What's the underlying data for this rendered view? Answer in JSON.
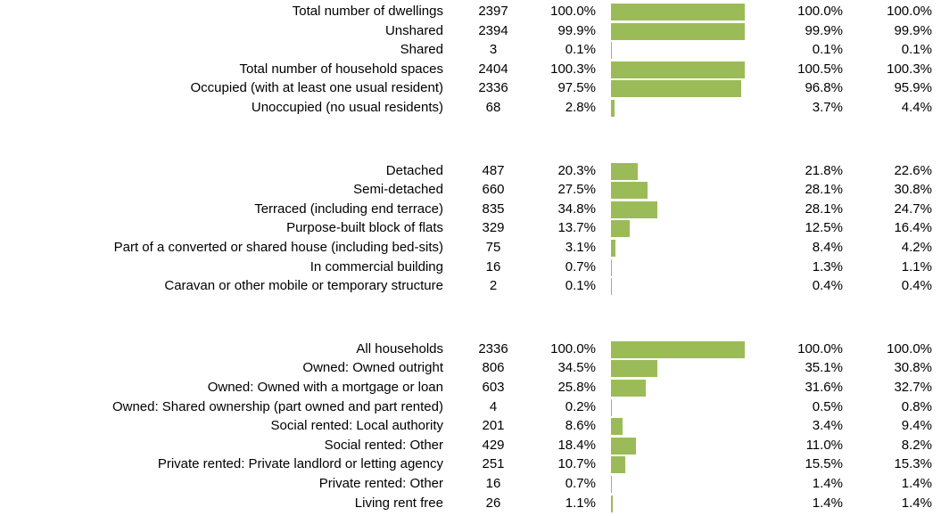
{
  "groups": [
    {
      "rows": [
        {
          "label": "Total number of dwellings",
          "count": 2397,
          "pct": {
            "value": 100.0,
            "label": "100.0%"
          },
          "c4": "100.0%",
          "c5": "100.0%"
        },
        {
          "label": "Unshared",
          "count": 2394,
          "pct": {
            "value": 99.9,
            "label": "99.9%"
          },
          "c4": "99.9%",
          "c5": "99.9%"
        },
        {
          "label": "Shared",
          "count": 3,
          "pct": {
            "value": 0.1,
            "label": "0.1%"
          },
          "c4": "0.1%",
          "c5": "0.1%"
        },
        {
          "label": "Total number of household spaces",
          "count": 2404,
          "pct": {
            "value": 100.3,
            "label": "100.3%"
          },
          "c4": "100.5%",
          "c5": "100.3%"
        },
        {
          "label": "Occupied (with at least one usual resident)",
          "count": 2336,
          "pct": {
            "value": 97.5,
            "label": "97.5%"
          },
          "c4": "96.8%",
          "c5": "95.9%"
        },
        {
          "label": "Unoccupied (no usual residents)",
          "count": 68,
          "pct": {
            "value": 2.8,
            "label": "2.8%"
          },
          "c4": "3.7%",
          "c5": "4.4%"
        }
      ]
    },
    {
      "rows": [
        {
          "label": "Detached",
          "count": 487,
          "pct": {
            "value": 20.3,
            "label": "20.3%"
          },
          "c4": "21.8%",
          "c5": "22.6%"
        },
        {
          "label": "Semi-detached",
          "count": 660,
          "pct": {
            "value": 27.5,
            "label": "27.5%"
          },
          "c4": "28.1%",
          "c5": "30.8%"
        },
        {
          "label": "Terraced (including end terrace)",
          "count": 835,
          "pct": {
            "value": 34.8,
            "label": "34.8%"
          },
          "c4": "28.1%",
          "c5": "24.7%"
        },
        {
          "label": "Purpose-built block of flats",
          "count": 329,
          "pct": {
            "value": 13.7,
            "label": "13.7%"
          },
          "c4": "12.5%",
          "c5": "16.4%"
        },
        {
          "label": "Part of a converted or shared house (including bed-sits)",
          "count": 75,
          "pct": {
            "value": 3.1,
            "label": "3.1%"
          },
          "c4": "8.4%",
          "c5": "4.2%"
        },
        {
          "label": "In commercial building",
          "count": 16,
          "pct": {
            "value": 0.7,
            "label": "0.7%"
          },
          "c4": "1.3%",
          "c5": "1.1%"
        },
        {
          "label": "Caravan or other mobile or temporary structure",
          "count": 2,
          "pct": {
            "value": 0.1,
            "label": "0.1%"
          },
          "c4": "0.4%",
          "c5": "0.4%"
        }
      ]
    },
    {
      "rows": [
        {
          "label": "All households",
          "count": 2336,
          "pct": {
            "value": 100.0,
            "label": "100.0%"
          },
          "c4": "100.0%",
          "c5": "100.0%"
        },
        {
          "label": "Owned: Owned outright",
          "count": 806,
          "pct": {
            "value": 34.5,
            "label": "34.5%"
          },
          "c4": "35.1%",
          "c5": "30.8%"
        },
        {
          "label": "Owned: Owned with a mortgage or loan",
          "count": 603,
          "pct": {
            "value": 25.8,
            "label": "25.8%"
          },
          "c4": "31.6%",
          "c5": "32.7%"
        },
        {
          "label": "Owned: Shared ownership (part owned and part rented)",
          "count": 4,
          "pct": {
            "value": 0.2,
            "label": "0.2%"
          },
          "c4": "0.5%",
          "c5": "0.8%"
        },
        {
          "label": "Social rented: Local authority",
          "count": 201,
          "pct": {
            "value": 8.6,
            "label": "8.6%"
          },
          "c4": "3.4%",
          "c5": "9.4%"
        },
        {
          "label": "Social rented: Other",
          "count": 429,
          "pct": {
            "value": 18.4,
            "label": "18.4%"
          },
          "c4": "11.0%",
          "c5": "8.2%"
        },
        {
          "label": "Private rented: Private landlord or letting agency",
          "count": 251,
          "pct": {
            "value": 10.7,
            "label": "10.7%"
          },
          "c4": "15.5%",
          "c5": "15.3%"
        },
        {
          "label": "Private rented: Other",
          "count": 16,
          "pct": {
            "value": 0.7,
            "label": "0.7%"
          },
          "c4": "1.4%",
          "c5": "1.4%"
        },
        {
          "label": "Living rent free",
          "count": 26,
          "pct": {
            "value": 1.1,
            "label": "1.1%"
          },
          "c4": "1.4%",
          "c5": "1.4%"
        }
      ]
    }
  ]
}
